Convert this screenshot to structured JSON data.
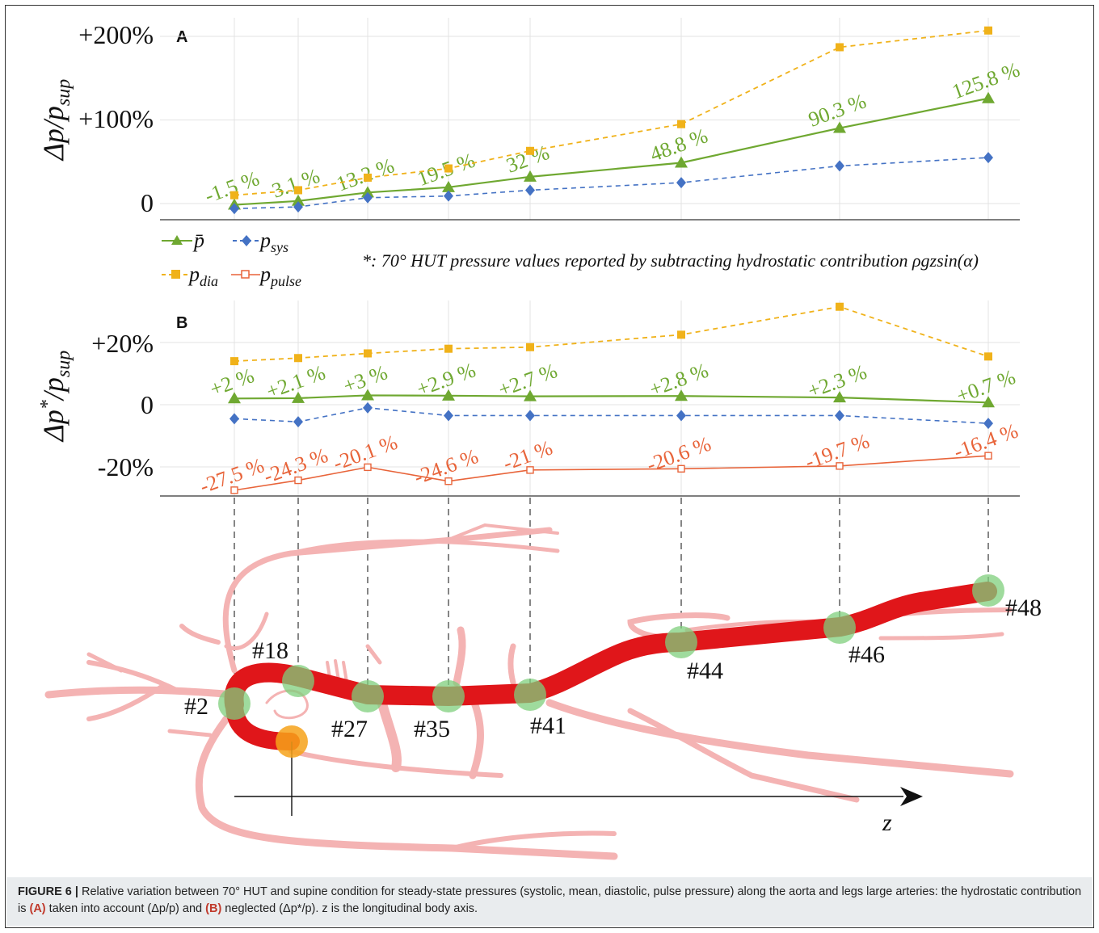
{
  "colors": {
    "mean": "#6fa831",
    "sys": "#4472c4",
    "dia": "#f0b21a",
    "pulse": "#e8643a",
    "artery_light": "#f4b3b3",
    "aorta": "#e0161a",
    "marker": "#7fcf7c",
    "marker_orange": "#f6a21a"
  },
  "panel_a": {
    "label": "A",
    "ylabel": "Δp/p_sup",
    "ticks": [
      "+200%",
      "+100%",
      "0"
    ],
    "note": "*: 70° HUT pressure values reported by subtracting hydrostatic contribution ρgzsin(α)"
  },
  "panel_b": {
    "label": "B",
    "ylabel": "Δp*/p_sup",
    "ticks": [
      "+20%",
      "0",
      "-20%"
    ]
  },
  "legend": {
    "mean": "p̄",
    "sys": "p_sys",
    "dia": "p_dia",
    "pulse": "p_pulse"
  },
  "chart_data": [
    {
      "type": "line",
      "panel": "A",
      "x": [
        "#2",
        "#18",
        "#27",
        "#35",
        "#41",
        "#44",
        "#46",
        "#48"
      ],
      "ylim": [
        -20,
        215
      ],
      "series": [
        {
          "name": "p̄",
          "values": [
            -1.5,
            3.1,
            13.2,
            19.5,
            32,
            48.8,
            90.3,
            125.8
          ],
          "labels": [
            "-1.5 %",
            "3.1 %",
            "13.2 %",
            "19.5 %",
            "32 %",
            "48.8 %",
            "90.3 %",
            "125.8 %"
          ]
        },
        {
          "name": "p_sys",
          "values": [
            -6,
            -4,
            7,
            9,
            16,
            25,
            45,
            55
          ]
        },
        {
          "name": "p_dia",
          "values": [
            10,
            16,
            31,
            42,
            63,
            95,
            187,
            207
          ]
        }
      ]
    },
    {
      "type": "line",
      "panel": "B",
      "x": [
        "#2",
        "#18",
        "#27",
        "#35",
        "#41",
        "#44",
        "#46",
        "#48"
      ],
      "ylim": [
        -30,
        35
      ],
      "series": [
        {
          "name": "p̄",
          "values": [
            2,
            2.1,
            3,
            2.9,
            2.7,
            2.8,
            2.3,
            0.7
          ],
          "labels": [
            "+2 %",
            "+2.1 %",
            "+3 %",
            "+2.9 %",
            "+2.7 %",
            "+2.8 %",
            "+2.3 %",
            "+0.7 %"
          ]
        },
        {
          "name": "p_sys",
          "values": [
            -4.5,
            -5.5,
            -1,
            -3.5,
            -3.5,
            -3.5,
            -3.5,
            -6
          ]
        },
        {
          "name": "p_dia",
          "values": [
            14,
            15,
            16.5,
            18,
            18.5,
            22.5,
            31.5,
            15.5
          ]
        },
        {
          "name": "p_pulse",
          "values": [
            -27.5,
            -24.3,
            -20.1,
            -24.6,
            -21,
            -20.6,
            -19.7,
            -16.4
          ],
          "labels": [
            "-27.5 %",
            "-24.3 %",
            "-20.1 %",
            "-24.6 %",
            "-21 %",
            "-20.6 %",
            "-19.7 %",
            "-16.4 %"
          ]
        }
      ]
    }
  ],
  "diagram": {
    "axis_label": "z",
    "nodes": [
      "#2",
      "#18",
      "#27",
      "#35",
      "#41",
      "#44",
      "#46",
      "#48"
    ]
  },
  "caption": {
    "lead": "FIGURE 6 |",
    "text1": " Relative variation between 70° HUT and supine condition for steady-state pressures (systolic, mean, diastolic, pulse pressure) along the aorta and legs large arteries: the hydrostatic contribution is ",
    "bold_a": "(A)",
    "text2": " taken into account (Δp/p) and ",
    "bold_b": "(B)",
    "text3": " neglected (Δp*/p). z is the longitudinal body axis."
  }
}
